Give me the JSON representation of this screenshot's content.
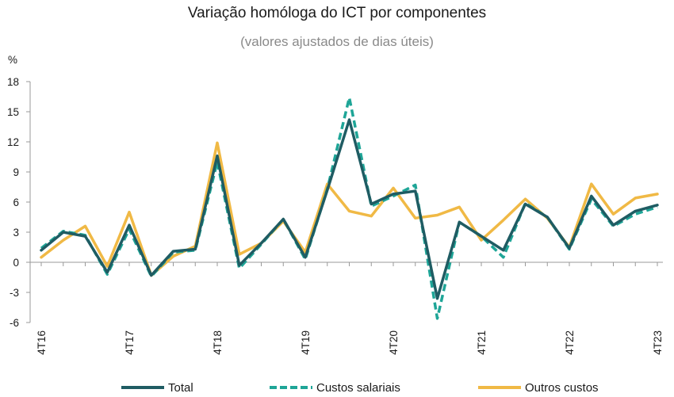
{
  "chart_data": {
    "type": "line",
    "title": "Variação homóloga do ICT por componentes",
    "subtitle": "(valores ajustados de dias úteis)",
    "yunit": "%",
    "ylim": [
      -6,
      18
    ],
    "yticks": [
      -6,
      -3,
      0,
      3,
      6,
      9,
      12,
      15,
      18
    ],
    "grid": false,
    "legend_position": "bottom",
    "x": [
      "4T16",
      "1T17",
      "2T17",
      "3T17",
      "4T17",
      "1T18",
      "2T18",
      "3T18",
      "4T18",
      "1T19",
      "2T19",
      "3T19",
      "4T19",
      "1T20",
      "2T20",
      "3T20",
      "4T20",
      "1T21",
      "2T21",
      "3T21",
      "4T21",
      "1T22",
      "2T22",
      "3T22",
      "4T22",
      "1T23",
      "2T23",
      "3T23",
      "4T23"
    ],
    "xtick_labels": [
      "4T16",
      "4T17",
      "4T18",
      "4T19",
      "4T20",
      "4T21",
      "4T22",
      "4T23"
    ],
    "series": [
      {
        "name": "Total",
        "color": "#1f5c63",
        "style": "solid",
        "values": [
          1.2,
          3.0,
          2.6,
          -1.0,
          3.7,
          -1.3,
          1.1,
          1.3,
          10.6,
          -0.3,
          1.9,
          4.3,
          0.5,
          7.2,
          14.2,
          5.8,
          6.8,
          7.1,
          -3.6,
          4.0,
          2.6,
          1.2,
          5.8,
          4.5,
          1.4,
          6.6,
          3.7,
          5.1,
          5.7
        ]
      },
      {
        "name": "Custos salariais",
        "color": "#1ea597",
        "style": "dashed",
        "values": [
          1.4,
          3.1,
          2.7,
          -1.2,
          3.3,
          -1.4,
          1.0,
          1.2,
          10.0,
          -0.6,
          1.8,
          4.3,
          0.3,
          7.3,
          16.4,
          5.6,
          6.6,
          7.7,
          -5.6,
          4.0,
          2.6,
          0.5,
          5.9,
          4.5,
          1.3,
          6.3,
          3.6,
          4.8,
          5.5
        ]
      },
      {
        "name": "Outros custos",
        "color": "#f0b945",
        "style": "solid",
        "values": [
          0.5,
          2.2,
          3.6,
          -0.4,
          5.0,
          -1.3,
          0.6,
          1.6,
          11.9,
          0.8,
          1.9,
          4.1,
          1.0,
          7.8,
          5.1,
          4.6,
          7.4,
          4.4,
          4.7,
          5.5,
          2.2,
          4.2,
          6.3,
          4.4,
          1.5,
          7.8,
          4.8,
          6.4,
          6.8
        ]
      }
    ]
  }
}
